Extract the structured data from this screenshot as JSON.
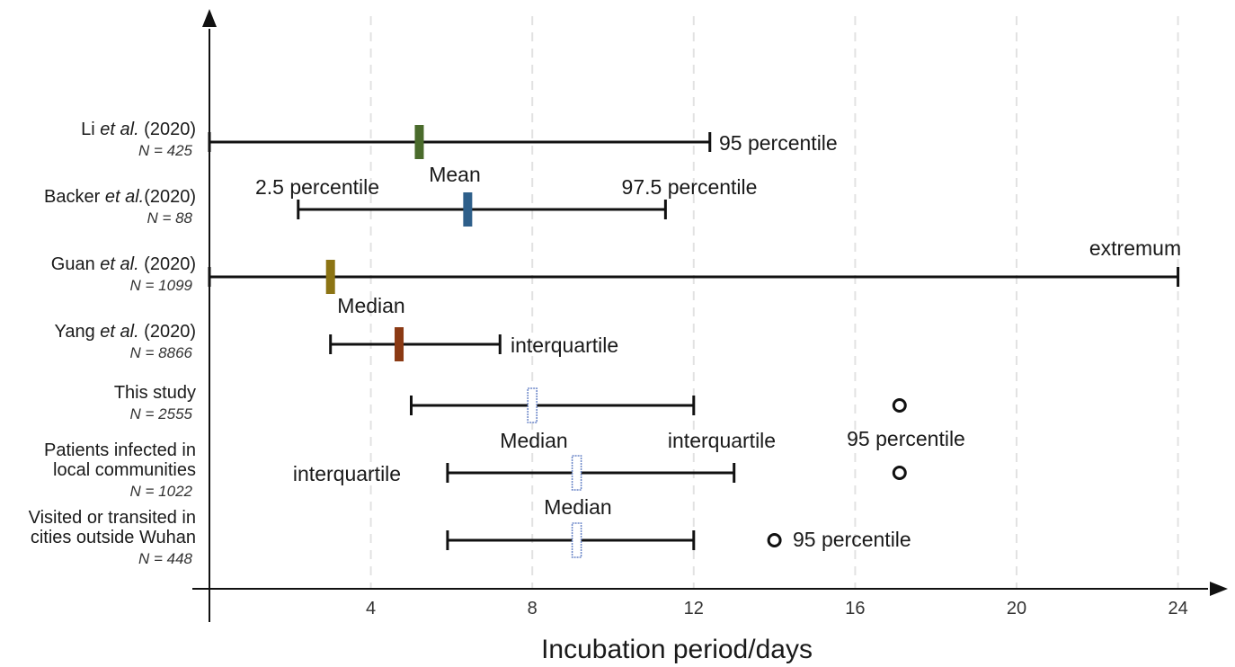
{
  "chart_data": {
    "type": "range",
    "xlabel": "Incubation period/days",
    "x_ticks": [
      4,
      8,
      12,
      16,
      20,
      24
    ],
    "xlim": [
      0,
      25
    ],
    "grid": "vertical dashed",
    "studies": [
      {
        "label_lines": [
          "Li et al. (2020)"
        ],
        "italic_part": "et al.",
        "n": "N = 425",
        "range": [
          0,
          12.4
        ],
        "center": 5.2,
        "center_color": "#4a6b2c",
        "center_style": "filled"
      },
      {
        "label_lines": [
          "Backer et al.(2020)"
        ],
        "italic_part": "et al.",
        "n": "N = 88",
        "range": [
          2.2,
          11.3
        ],
        "center": 6.4,
        "center_color": "#2e5f8a",
        "center_style": "filled"
      },
      {
        "label_lines": [
          "Guan et al. (2020)"
        ],
        "italic_part": "et al.",
        "n": "N = 1099",
        "range": [
          0,
          24
        ],
        "center": 3.0,
        "center_color": "#8c7414",
        "center_style": "filled"
      },
      {
        "label_lines": [
          "Yang et al. (2020)"
        ],
        "italic_part": "et al.",
        "n": "N = 8866",
        "range": [
          3.0,
          7.2
        ],
        "center": 4.7,
        "center_color": "#8b3a14",
        "center_style": "filled"
      },
      {
        "label_lines": [
          "This study"
        ],
        "italic_part": "",
        "n": "N = 2555",
        "range": [
          5.0,
          12.0
        ],
        "center": 8.0,
        "center_color": "#6b86c8",
        "center_style": "hollow",
        "p95": 17.1
      },
      {
        "label_lines": [
          "Patients infected in",
          "local communities"
        ],
        "italic_part": "",
        "n": "N = 1022",
        "range": [
          5.9,
          13.0
        ],
        "center": 9.1,
        "center_color": "#6b86c8",
        "center_style": "hollow",
        "p95": 17.1
      },
      {
        "label_lines": [
          "Visited or transited in",
          "cities outside Wuhan"
        ],
        "italic_part": "",
        "n": "N = 448",
        "range": [
          5.9,
          12.0
        ],
        "center": 9.1,
        "center_color": "#6b86c8",
        "center_style": "hollow",
        "p95": 14.0
      }
    ],
    "annotations": [
      {
        "text": "95 percentile",
        "near": "Li et al. upper end"
      },
      {
        "text": "Mean",
        "near": "Backer et al. centre"
      },
      {
        "text": "2.5 percentile",
        "near": "Backer et al. lower end"
      },
      {
        "text": "97.5 percentile",
        "near": "Backer et al. upper end"
      },
      {
        "text": "extremum",
        "near": "Guan et al. upper end"
      },
      {
        "text": "Median",
        "near": "Guan et al. centre"
      },
      {
        "text": "interquartile",
        "near": "Yang et al. upper end"
      },
      {
        "text": "Median",
        "near": "This study centre"
      },
      {
        "text": "interquartile",
        "near": "This study upper end"
      },
      {
        "text": "95 percentile",
        "near": "This study 95 percentile"
      },
      {
        "text": "interquartile",
        "near": "Local communities lower end"
      },
      {
        "text": "Median",
        "near": "Local communities centre"
      },
      {
        "text": "95 percentile",
        "near": "Outside Wuhan 95 percentile"
      }
    ]
  }
}
